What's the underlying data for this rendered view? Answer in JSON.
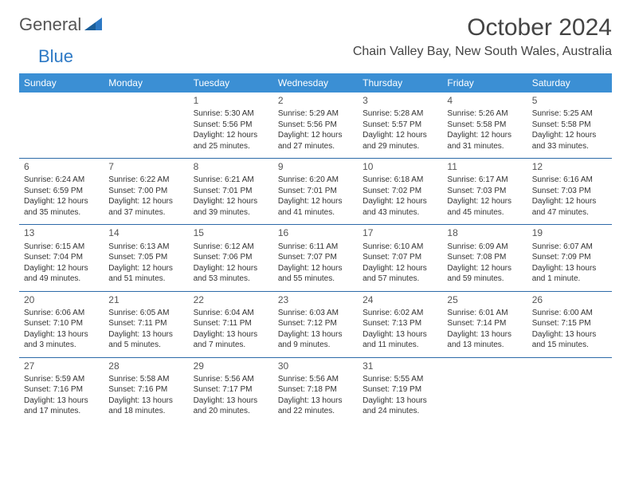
{
  "logo": {
    "text1": "General",
    "text2": "Blue"
  },
  "header": {
    "title": "October 2024",
    "location": "Chain Valley Bay, New South Wales, Australia"
  },
  "columns": [
    "Sunday",
    "Monday",
    "Tuesday",
    "Wednesday",
    "Thursday",
    "Friday",
    "Saturday"
  ],
  "colors": {
    "header_bg": "#3b8fd4",
    "header_text": "#ffffff",
    "row_border": "#2d6aa8",
    "title_color": "#444444",
    "text_color": "#333333",
    "logo_blue": "#2d79c5"
  },
  "weeks": [
    [
      {
        "day": "",
        "sunrise": "",
        "sunset": "",
        "daylight": ""
      },
      {
        "day": "",
        "sunrise": "",
        "sunset": "",
        "daylight": ""
      },
      {
        "day": "1",
        "sunrise": "Sunrise: 5:30 AM",
        "sunset": "Sunset: 5:56 PM",
        "daylight": "Daylight: 12 hours and 25 minutes."
      },
      {
        "day": "2",
        "sunrise": "Sunrise: 5:29 AM",
        "sunset": "Sunset: 5:56 PM",
        "daylight": "Daylight: 12 hours and 27 minutes."
      },
      {
        "day": "3",
        "sunrise": "Sunrise: 5:28 AM",
        "sunset": "Sunset: 5:57 PM",
        "daylight": "Daylight: 12 hours and 29 minutes."
      },
      {
        "day": "4",
        "sunrise": "Sunrise: 5:26 AM",
        "sunset": "Sunset: 5:58 PM",
        "daylight": "Daylight: 12 hours and 31 minutes."
      },
      {
        "day": "5",
        "sunrise": "Sunrise: 5:25 AM",
        "sunset": "Sunset: 5:58 PM",
        "daylight": "Daylight: 12 hours and 33 minutes."
      }
    ],
    [
      {
        "day": "6",
        "sunrise": "Sunrise: 6:24 AM",
        "sunset": "Sunset: 6:59 PM",
        "daylight": "Daylight: 12 hours and 35 minutes."
      },
      {
        "day": "7",
        "sunrise": "Sunrise: 6:22 AM",
        "sunset": "Sunset: 7:00 PM",
        "daylight": "Daylight: 12 hours and 37 minutes."
      },
      {
        "day": "8",
        "sunrise": "Sunrise: 6:21 AM",
        "sunset": "Sunset: 7:01 PM",
        "daylight": "Daylight: 12 hours and 39 minutes."
      },
      {
        "day": "9",
        "sunrise": "Sunrise: 6:20 AM",
        "sunset": "Sunset: 7:01 PM",
        "daylight": "Daylight: 12 hours and 41 minutes."
      },
      {
        "day": "10",
        "sunrise": "Sunrise: 6:18 AM",
        "sunset": "Sunset: 7:02 PM",
        "daylight": "Daylight: 12 hours and 43 minutes."
      },
      {
        "day": "11",
        "sunrise": "Sunrise: 6:17 AM",
        "sunset": "Sunset: 7:03 PM",
        "daylight": "Daylight: 12 hours and 45 minutes."
      },
      {
        "day": "12",
        "sunrise": "Sunrise: 6:16 AM",
        "sunset": "Sunset: 7:03 PM",
        "daylight": "Daylight: 12 hours and 47 minutes."
      }
    ],
    [
      {
        "day": "13",
        "sunrise": "Sunrise: 6:15 AM",
        "sunset": "Sunset: 7:04 PM",
        "daylight": "Daylight: 12 hours and 49 minutes."
      },
      {
        "day": "14",
        "sunrise": "Sunrise: 6:13 AM",
        "sunset": "Sunset: 7:05 PM",
        "daylight": "Daylight: 12 hours and 51 minutes."
      },
      {
        "day": "15",
        "sunrise": "Sunrise: 6:12 AM",
        "sunset": "Sunset: 7:06 PM",
        "daylight": "Daylight: 12 hours and 53 minutes."
      },
      {
        "day": "16",
        "sunrise": "Sunrise: 6:11 AM",
        "sunset": "Sunset: 7:07 PM",
        "daylight": "Daylight: 12 hours and 55 minutes."
      },
      {
        "day": "17",
        "sunrise": "Sunrise: 6:10 AM",
        "sunset": "Sunset: 7:07 PM",
        "daylight": "Daylight: 12 hours and 57 minutes."
      },
      {
        "day": "18",
        "sunrise": "Sunrise: 6:09 AM",
        "sunset": "Sunset: 7:08 PM",
        "daylight": "Daylight: 12 hours and 59 minutes."
      },
      {
        "day": "19",
        "sunrise": "Sunrise: 6:07 AM",
        "sunset": "Sunset: 7:09 PM",
        "daylight": "Daylight: 13 hours and 1 minute."
      }
    ],
    [
      {
        "day": "20",
        "sunrise": "Sunrise: 6:06 AM",
        "sunset": "Sunset: 7:10 PM",
        "daylight": "Daylight: 13 hours and 3 minutes."
      },
      {
        "day": "21",
        "sunrise": "Sunrise: 6:05 AM",
        "sunset": "Sunset: 7:11 PM",
        "daylight": "Daylight: 13 hours and 5 minutes."
      },
      {
        "day": "22",
        "sunrise": "Sunrise: 6:04 AM",
        "sunset": "Sunset: 7:11 PM",
        "daylight": "Daylight: 13 hours and 7 minutes."
      },
      {
        "day": "23",
        "sunrise": "Sunrise: 6:03 AM",
        "sunset": "Sunset: 7:12 PM",
        "daylight": "Daylight: 13 hours and 9 minutes."
      },
      {
        "day": "24",
        "sunrise": "Sunrise: 6:02 AM",
        "sunset": "Sunset: 7:13 PM",
        "daylight": "Daylight: 13 hours and 11 minutes."
      },
      {
        "day": "25",
        "sunrise": "Sunrise: 6:01 AM",
        "sunset": "Sunset: 7:14 PM",
        "daylight": "Daylight: 13 hours and 13 minutes."
      },
      {
        "day": "26",
        "sunrise": "Sunrise: 6:00 AM",
        "sunset": "Sunset: 7:15 PM",
        "daylight": "Daylight: 13 hours and 15 minutes."
      }
    ],
    [
      {
        "day": "27",
        "sunrise": "Sunrise: 5:59 AM",
        "sunset": "Sunset: 7:16 PM",
        "daylight": "Daylight: 13 hours and 17 minutes."
      },
      {
        "day": "28",
        "sunrise": "Sunrise: 5:58 AM",
        "sunset": "Sunset: 7:16 PM",
        "daylight": "Daylight: 13 hours and 18 minutes."
      },
      {
        "day": "29",
        "sunrise": "Sunrise: 5:56 AM",
        "sunset": "Sunset: 7:17 PM",
        "daylight": "Daylight: 13 hours and 20 minutes."
      },
      {
        "day": "30",
        "sunrise": "Sunrise: 5:56 AM",
        "sunset": "Sunset: 7:18 PM",
        "daylight": "Daylight: 13 hours and 22 minutes."
      },
      {
        "day": "31",
        "sunrise": "Sunrise: 5:55 AM",
        "sunset": "Sunset: 7:19 PM",
        "daylight": "Daylight: 13 hours and 24 minutes."
      },
      {
        "day": "",
        "sunrise": "",
        "sunset": "",
        "daylight": ""
      },
      {
        "day": "",
        "sunrise": "",
        "sunset": "",
        "daylight": ""
      }
    ]
  ]
}
